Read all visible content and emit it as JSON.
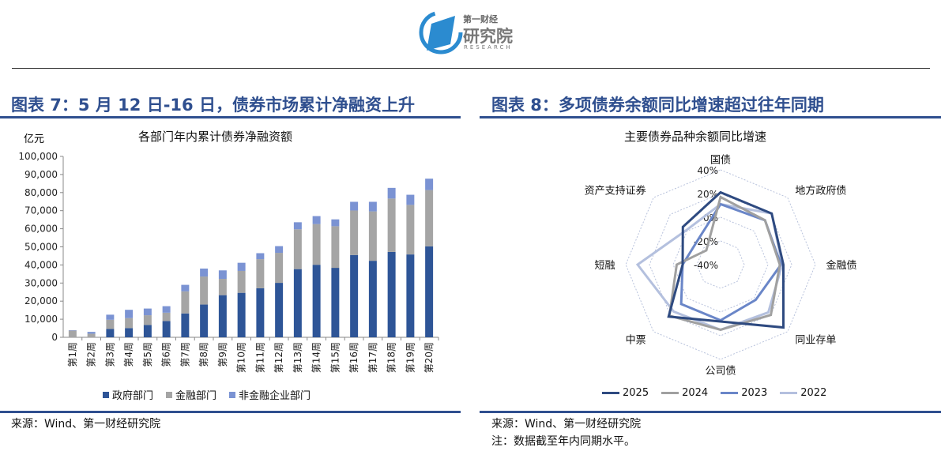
{
  "logo": {
    "line1": "第一财经",
    "line2": "研究院",
    "line3": "RESEARCH"
  },
  "left": {
    "figure_title": "图表 7：5 月 12 日-16 日，债券市场累计净融资上升",
    "source": "来源：Wind、第一财经研究院"
  },
  "right": {
    "figure_title": "图表 8：多项债券余额同比增速超过往年同期",
    "source": "来源：Wind、第一财经研究院",
    "note": "注：数据截至年内同期水平。"
  },
  "chart_data": [
    {
      "type": "bar",
      "stacked": true,
      "title": "各部门年内累计债券净融资额",
      "ylabel": "亿元",
      "ylim": [
        0,
        100000
      ],
      "yticks": [
        "0",
        "10,000",
        "20,000",
        "30,000",
        "40,000",
        "50,000",
        "60,000",
        "70,000",
        "80,000",
        "90,000",
        "100,000"
      ],
      "categories": [
        "第1周",
        "第2周",
        "第3周",
        "第4周",
        "第5周",
        "第6周",
        "第7周",
        "第8周",
        "第9周",
        "第10周",
        "第11周",
        "第12周",
        "第13周",
        "第14周",
        "第15周",
        "第16周",
        "第17周",
        "第18周",
        "第19周",
        "第20周"
      ],
      "legend": "bottom",
      "series": [
        {
          "name": "政府部门",
          "color": "#2E5597",
          "values": [
            0,
            0,
            4600,
            5100,
            6800,
            9000,
            13200,
            18100,
            23300,
            24600,
            27100,
            30100,
            37700,
            40100,
            38400,
            45500,
            42300,
            47200,
            45800,
            50300
          ]
        },
        {
          "name": "金融部门",
          "color": "#A5A5A5",
          "values": [
            3700,
            2000,
            5100,
            5500,
            5400,
            4600,
            12200,
            15500,
            9000,
            12100,
            16100,
            16600,
            22000,
            22500,
            23000,
            24600,
            27300,
            29500,
            27400,
            31100
          ]
        },
        {
          "name": "非金融企业部门",
          "color": "#7B93D3",
          "values": [
            200,
            1000,
            2800,
            4600,
            3700,
            3600,
            3600,
            4400,
            4700,
            4500,
            3300,
            3700,
            3900,
            4400,
            3800,
            4800,
            5300,
            5900,
            5600,
            6300
          ]
        }
      ]
    },
    {
      "type": "radar",
      "title": "主要债券品种余额同比增速",
      "range": [
        -40,
        40
      ],
      "ticks": [
        "-40%",
        "-20%",
        "0%",
        "20%",
        "40%"
      ],
      "categories": [
        "国债",
        "地方政府债",
        "金融债",
        "同业存单",
        "公司债",
        "中票",
        "短融",
        "资产支持证券"
      ],
      "legend": "bottom",
      "series": [
        {
          "name": "2025",
          "color": "#2E4A80",
          "values": [
            21,
            21,
            13,
            35,
            8,
            22,
            -8,
            5
          ]
        },
        {
          "name": "2024",
          "color": "#A0A0A0",
          "values": [
            17,
            13,
            10,
            20,
            15,
            21,
            -3,
            -23
          ]
        },
        {
          "name": "2023",
          "color": "#6A86C8",
          "values": [
            11,
            13,
            11,
            2,
            7,
            7,
            -8,
            -12
          ]
        },
        {
          "name": "2022",
          "color": "#B4C0DE",
          "values": [
            11,
            21,
            12,
            17,
            15,
            16,
            30,
            1
          ]
        }
      ]
    }
  ]
}
